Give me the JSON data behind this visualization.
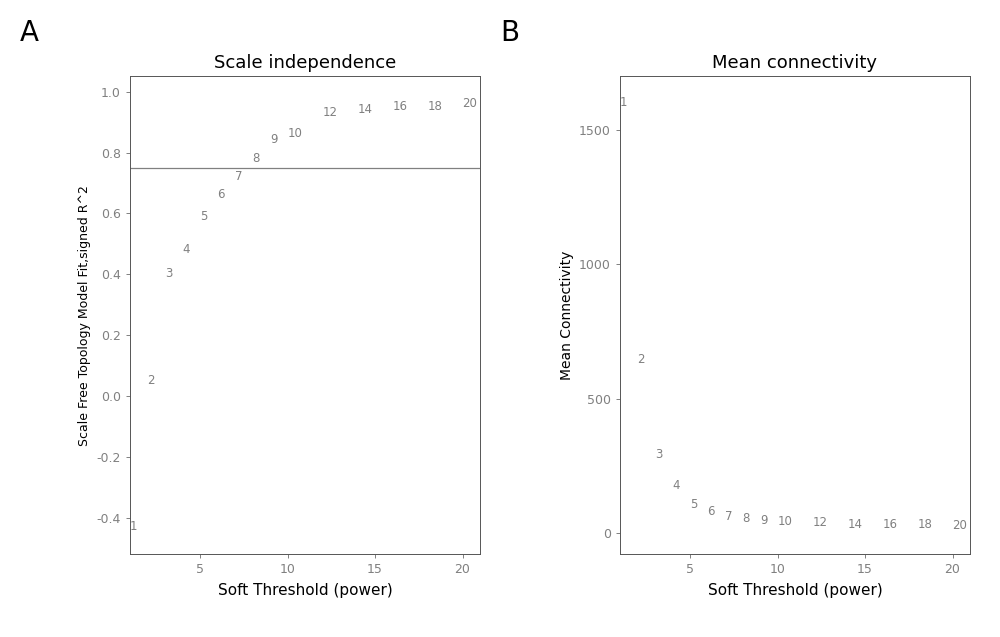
{
  "panel_A": {
    "title": "Scale independence",
    "xlabel": "Soft Threshold (power)",
    "ylabel": "Scale Free Topology Model Fit,signed R^2",
    "x": [
      1,
      2,
      3,
      4,
      5,
      6,
      7,
      8,
      9,
      10,
      12,
      14,
      16,
      18,
      20
    ],
    "y": [
      -0.45,
      0.03,
      0.38,
      0.46,
      0.57,
      0.64,
      0.7,
      0.76,
      0.82,
      0.84,
      0.91,
      0.92,
      0.93,
      0.93,
      0.94
    ],
    "hline_y": 0.75,
    "xlim": [
      1,
      21
    ],
    "ylim": [
      -0.52,
      1.05
    ],
    "yticks": [
      -0.4,
      -0.2,
      0.0,
      0.2,
      0.4,
      0.6,
      0.8,
      1.0
    ],
    "ytick_labels": [
      "-0.4",
      "-0.2",
      "0.0",
      "0.2",
      "0.4",
      "0.6",
      "0.8",
      "1.0"
    ],
    "xticks": [
      5,
      10,
      15,
      20
    ],
    "xtick_labels": [
      "5",
      "10",
      "15",
      "20"
    ]
  },
  "panel_B": {
    "title": "Mean connectivity",
    "xlabel": "Soft Threshold (power)",
    "ylabel": "Mean Connectivity",
    "x": [
      1,
      2,
      3,
      4,
      5,
      6,
      7,
      8,
      9,
      10,
      12,
      14,
      16,
      18,
      20
    ],
    "y": [
      1580,
      620,
      268,
      150,
      82,
      55,
      38,
      28,
      22,
      18,
      12,
      8,
      6,
      5,
      4
    ],
    "xlim": [
      1,
      21
    ],
    "ylim": [
      -80,
      1700
    ],
    "yticks": [
      0,
      500,
      1000,
      1500
    ],
    "ytick_labels": [
      "0",
      "500",
      "1000",
      "1500"
    ],
    "xticks": [
      5,
      10,
      15,
      20
    ],
    "xtick_labels": [
      "5",
      "10",
      "15",
      "20"
    ]
  },
  "text_color": "#808080",
  "point_color": "#808080",
  "line_color": "#808080",
  "spine_color": "#555555",
  "bg_color": "#ffffff",
  "label_A": "A",
  "label_B": "B",
  "point_fontsize": 8.5,
  "tick_fontsize": 9,
  "title_fontsize": 13,
  "xlabel_fontsize": 11,
  "ylabel_fontsize_A": 9,
  "ylabel_fontsize_B": 10,
  "panel_label_fontsize": 20
}
